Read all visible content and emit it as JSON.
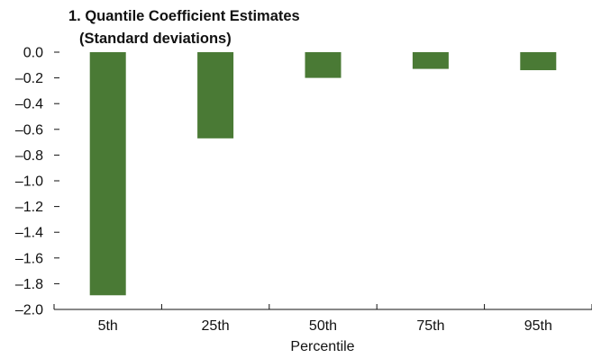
{
  "chart_data": {
    "type": "bar",
    "title": "1. Quantile Coefficient Estimates",
    "subtitle": "(Standard deviations)",
    "xlabel": "Percentile",
    "ylabel": "",
    "categories": [
      "5th",
      "25th",
      "50th",
      "75th",
      "95th"
    ],
    "values": [
      -1.89,
      -0.67,
      -0.2,
      -0.13,
      -0.14
    ],
    "ylim": [
      -2.0,
      0.0
    ],
    "yticks": [
      0.0,
      -0.2,
      -0.4,
      -0.6,
      -0.8,
      -1.0,
      -1.2,
      -1.4,
      -1.6,
      -1.8,
      -2.0
    ],
    "ytick_labels": [
      "0.0",
      "–0.2",
      "–0.4",
      "–0.6",
      "–0.8",
      "–1.0",
      "–1.2",
      "–1.4",
      "–1.6",
      "–1.8",
      "–2.0"
    ],
    "grid": false,
    "legend": "none",
    "colors": {
      "bar": "#4a7a35",
      "axis": "#111111"
    }
  }
}
